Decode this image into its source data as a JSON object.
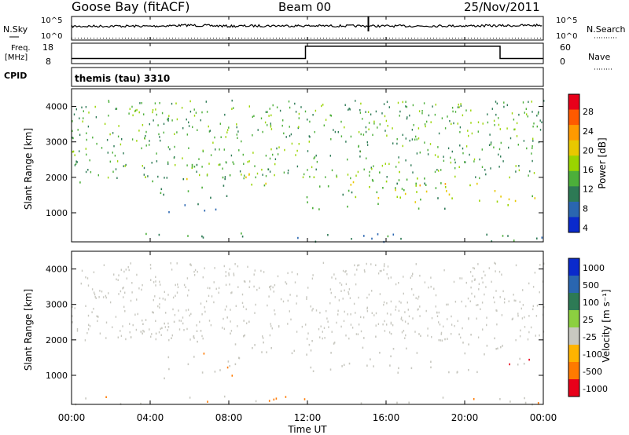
{
  "header": {
    "station": "Goose Bay (fitACF)",
    "beam": "Beam 00",
    "date": "25/Nov/2011"
  },
  "noise_panel": {
    "left_label": "N.Sky",
    "right_label": "N.Search",
    "left_ticks": [
      "10^5",
      "10^0"
    ],
    "right_ticks": [
      "10^5",
      "10^0"
    ]
  },
  "freq_panel": {
    "left_label_line1": "Freq.",
    "left_label_line2": "[MHz]",
    "left_ticks": [
      "18",
      "8"
    ],
    "right_ticks": [
      "60",
      "0"
    ],
    "right_label": "Nave",
    "cpid_label": "CPID"
  },
  "cpid_panel": {
    "text": "themis (tau) 3310"
  },
  "power_panel": {
    "ylabel": "Slant Range [km]",
    "yticks": [
      "4000",
      "3000",
      "2000",
      "1000"
    ],
    "colorbar_label": "Power [dB]",
    "colorbar_ticks": [
      "28",
      "24",
      "20",
      "16",
      "12",
      "8",
      "4"
    ],
    "colors": [
      "#e8001a",
      "#ff5a00",
      "#ff9a00",
      "#e8c800",
      "#9ad400",
      "#4caf3a",
      "#2d7a55",
      "#2a66b0",
      "#0a2acc"
    ]
  },
  "velocity_panel": {
    "ylabel": "Slant Range [km]",
    "yticks": [
      "4000",
      "3000",
      "2000",
      "1000"
    ],
    "colorbar_label": "Velocity  [m s⁻¹]",
    "colorbar_ticks": [
      "1000",
      "500",
      "100",
      "25",
      "-25",
      "-100",
      "-500",
      "-1000"
    ],
    "colors": [
      "#0a2acc",
      "#2a66b0",
      "#2d7a55",
      "#8cd040",
      "#c8c8c0",
      "#ffb400",
      "#ff7a00",
      "#e8001a"
    ]
  },
  "xaxis": {
    "ticks": [
      "00:00",
      "04:00",
      "08:00",
      "12:00",
      "16:00",
      "20:00",
      "00:00"
    ],
    "label": "Time UT"
  },
  "chart_data": [
    {
      "type": "line",
      "title": "Goose Bay (fitACF) Beam 00 25/Nov/2011",
      "series": [
        {
          "name": "N.Sky",
          "x": [
            0,
            2,
            4,
            6,
            8,
            10,
            12,
            14,
            16,
            18,
            20,
            22,
            24
          ],
          "values": [
            1000,
            1200,
            1100,
            2000,
            1100,
            1500,
            1400,
            1300,
            1200,
            1300,
            1400,
            1500,
            2000
          ]
        }
      ],
      "x_units": "hours UT",
      "yscale": "log"
    },
    {
      "type": "line",
      "series": [
        {
          "name": "Freq.",
          "x": [
            0,
            11.9,
            11.9,
            21.8,
            21.8,
            24
          ],
          "values": [
            10.5,
            10.5,
            16.5,
            16.5,
            10.5,
            10.5
          ]
        },
        {
          "name": "Nave",
          "x": [
            0,
            24
          ],
          "values": [
            18,
            18
          ]
        }
      ],
      "xlabel": "Time UT",
      "ylim": [
        8,
        18
      ]
    },
    {
      "type": "heatmap",
      "ylabel": "Slant Range [km]",
      "xlabel": "Time UT",
      "xlim": [
        0,
        24
      ],
      "ylim": [
        180,
        4500
      ],
      "colorbar": "Power [dB]",
      "clim": [
        0,
        30
      ],
      "bands": [
        {
          "t0": 0.0,
          "t1": 0.5,
          "r0": 1800,
          "r1": 2600,
          "value": 8
        },
        {
          "t0": 3.5,
          "t1": 6.5,
          "r0": 1900,
          "r1": 2400,
          "value": 12
        },
        {
          "t0": 5.0,
          "t1": 6.5,
          "r0": 1950,
          "r1": 2150,
          "value": 20
        },
        {
          "t0": 6.5,
          "t1": 9.0,
          "r0": 1700,
          "r1": 2100,
          "value": 10
        },
        {
          "t0": 4.5,
          "t1": 8.0,
          "r0": 1000,
          "r1": 1700,
          "value": 8
        },
        {
          "t0": 8.5,
          "t1": 10.5,
          "r0": 1500,
          "r1": 2200,
          "value": 16
        },
        {
          "t0": 11.0,
          "t1": 19.0,
          "r0": 1100,
          "r1": 2200,
          "value": 12
        },
        {
          "t0": 14.0,
          "t1": 22.0,
          "r0": 1300,
          "r1": 1900,
          "value": 18
        },
        {
          "t0": 22.0,
          "t1": 24.0,
          "r0": 1100,
          "r1": 1600,
          "value": 16
        },
        {
          "t0": 0.0,
          "t1": 24.0,
          "r0": 180,
          "r1": 450,
          "value": 8
        }
      ]
    },
    {
      "type": "heatmap",
      "ylabel": "Slant Range [km]",
      "xlabel": "Time UT",
      "xlim": [
        0,
        24
      ],
      "ylim": [
        180,
        4500
      ],
      "colorbar": "Velocity [m s-1]",
      "clim": [
        -1000,
        1000
      ],
      "bands": [
        {
          "t0": 3.5,
          "t1": 9.0,
          "r0": 1900,
          "r1": 2700,
          "value": 0
        },
        {
          "t0": 4.5,
          "t1": 8.5,
          "r0": 900,
          "r1": 1700,
          "value": -150
        },
        {
          "t0": 8.5,
          "t1": 11.0,
          "r0": 1500,
          "r1": 2100,
          "value": 0
        },
        {
          "t0": 11.0,
          "t1": 22.0,
          "r0": 1100,
          "r1": 2200,
          "value": 0
        },
        {
          "t0": 22.0,
          "t1": 24.0,
          "r0": 1100,
          "r1": 1600,
          "value": -600
        },
        {
          "t0": 0.0,
          "t1": 24.0,
          "r0": 180,
          "r1": 450,
          "value": -200
        }
      ]
    }
  ]
}
